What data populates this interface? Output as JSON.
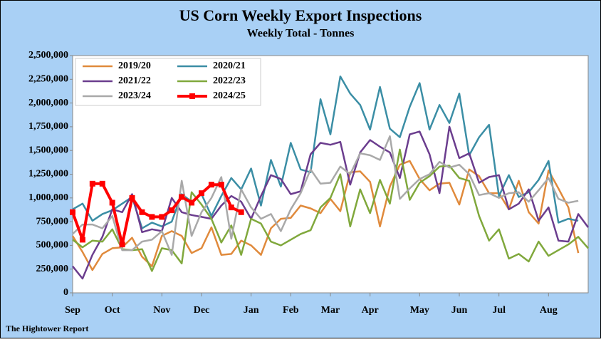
{
  "chart_data": {
    "type": "line",
    "title": "US Corn Weekly Export Inspections",
    "subtitle": "Weekly Total - Tonnes",
    "footer": "The Hightower Report",
    "categories": [
      "Sep",
      null,
      null,
      null,
      "Oct",
      null,
      null,
      null,
      null,
      "Nov",
      null,
      null,
      null,
      "Dec",
      null,
      null,
      null,
      null,
      "Jan",
      null,
      null,
      null,
      "Feb",
      null,
      null,
      null,
      "Mar",
      null,
      null,
      null,
      "Apr",
      null,
      null,
      null,
      null,
      "May",
      null,
      null,
      null,
      "Jun",
      null,
      null,
      null,
      "Jul",
      null,
      null,
      null,
      null,
      "Aug",
      null,
      null,
      null,
      null
    ],
    "ylim": [
      0,
      2500000
    ],
    "yticks": [
      0,
      {
        "value": 250000,
        "label": "250,000"
      },
      {
        "value": 500000,
        "label": "500,000"
      },
      {
        "value": 750000,
        "label": "750,000"
      },
      {
        "value": 1000000,
        "label": "1,000,000"
      },
      {
        "value": 1250000,
        "label": "1,250,000"
      },
      {
        "value": 1500000,
        "label": "1,500,000"
      },
      {
        "value": 1750000,
        "label": "1,750,000"
      },
      {
        "value": 2000000,
        "label": "2,000,000"
      },
      {
        "value": 2250000,
        "label": "2,250,000"
      },
      {
        "value": 2500000,
        "label": "2,500,000"
      }
    ],
    "grid": false,
    "legend": "upper left",
    "series": [
      {
        "name": "2019/20",
        "color": "#e08a3c",
        "values": [
          600000,
          430000,
          240000,
          410000,
          470000,
          480000,
          580000,
          380000,
          280000,
          600000,
          650000,
          600000,
          420000,
          470000,
          690000,
          400000,
          410000,
          550000,
          500000,
          400000,
          680000,
          780000,
          790000,
          920000,
          890000,
          840000,
          990000,
          860000,
          1270000,
          1280000,
          1170000,
          700000,
          1120000,
          1350000,
          1390000,
          1200000,
          1080000,
          1150000,
          1160000,
          930000,
          1300000,
          1230000,
          1050000,
          1050000,
          880000,
          1180000,
          850000,
          730000,
          1290000,
          1100000,
          900000,
          420000,
          null
        ]
      },
      {
        "name": "2020/21",
        "color": "#3b8ea5",
        "values": [
          880000,
          940000,
          760000,
          830000,
          870000,
          940000,
          1010000,
          680000,
          740000,
          700000,
          750000,
          1040000,
          960000,
          1040000,
          810000,
          1020000,
          1210000,
          1090000,
          1310000,
          920000,
          1400000,
          1120000,
          1580000,
          1300000,
          1270000,
          2040000,
          1670000,
          2280000,
          2100000,
          1980000,
          1720000,
          2170000,
          1730000,
          1640000,
          1960000,
          2210000,
          1720000,
          1980000,
          1790000,
          2100000,
          1450000,
          1640000,
          1770000,
          1020000,
          1240000,
          1010000,
          1060000,
          1190000,
          1390000,
          740000,
          780000,
          760000,
          null
        ]
      },
      {
        "name": "2021/22",
        "color": "#6b3d8e",
        "values": [
          280000,
          150000,
          400000,
          590000,
          880000,
          850000,
          1040000,
          640000,
          670000,
          650000,
          1000000,
          850000,
          820000,
          800000,
          780000,
          920000,
          1020000,
          960000,
          780000,
          1020000,
          1240000,
          1200000,
          1040000,
          1070000,
          1460000,
          1580000,
          1560000,
          1590000,
          1140000,
          1480000,
          1610000,
          1540000,
          1480000,
          1210000,
          1670000,
          1700000,
          1460000,
          1050000,
          1750000,
          1420000,
          1470000,
          1160000,
          1220000,
          1240000,
          880000,
          940000,
          1090000,
          760000,
          900000,
          550000,
          540000,
          830000,
          690000
        ]
      },
      {
        "name": "2022/23",
        "color": "#80a83c",
        "values": [
          560000,
          480000,
          550000,
          540000,
          670000,
          460000,
          450000,
          460000,
          230000,
          470000,
          450000,
          310000,
          1060000,
          930000,
          780000,
          530000,
          710000,
          400000,
          780000,
          730000,
          540000,
          500000,
          560000,
          620000,
          660000,
          900000,
          1000000,
          1250000,
          700000,
          1090000,
          840000,
          1190000,
          940000,
          1510000,
          980000,
          1160000,
          1230000,
          1330000,
          1340000,
          1210000,
          1180000,
          810000,
          550000,
          670000,
          360000,
          410000,
          330000,
          540000,
          390000,
          450000,
          510000,
          590000,
          470000
        ]
      },
      {
        "name": "2023/24",
        "color": "#a9a9a9",
        "values": [
          620000,
          720000,
          720000,
          680000,
          810000,
          450000,
          450000,
          540000,
          560000,
          650000,
          400000,
          1180000,
          600000,
          850000,
          1000000,
          1220000,
          570000,
          1090000,
          900000,
          780000,
          830000,
          650000,
          880000,
          1050000,
          1300000,
          1150000,
          1160000,
          1330000,
          1250000,
          1470000,
          1450000,
          1400000,
          1650000,
          990000,
          1100000,
          1200000,
          1250000,
          1380000,
          1320000,
          1350000,
          1250000,
          1030000,
          1050000,
          1000000,
          1050000,
          1060000,
          960000,
          1080000,
          1210000,
          990000,
          950000,
          970000,
          null
        ]
      },
      {
        "name": "2024/25",
        "color": "#ff0000",
        "markers": true,
        "values": [
          850000,
          560000,
          1150000,
          1150000,
          950000,
          510000,
          1000000,
          850000,
          800000,
          800000,
          870000,
          1010000,
          950000,
          1050000,
          1140000,
          1140000,
          900000,
          850000,
          null,
          null,
          null,
          null,
          null,
          null,
          null,
          null,
          null,
          null,
          null,
          null,
          null,
          null,
          null,
          null,
          null,
          null,
          null,
          null,
          null,
          null,
          null,
          null,
          null,
          null,
          null,
          null,
          null,
          null,
          null,
          null,
          null,
          null,
          null
        ]
      }
    ]
  }
}
